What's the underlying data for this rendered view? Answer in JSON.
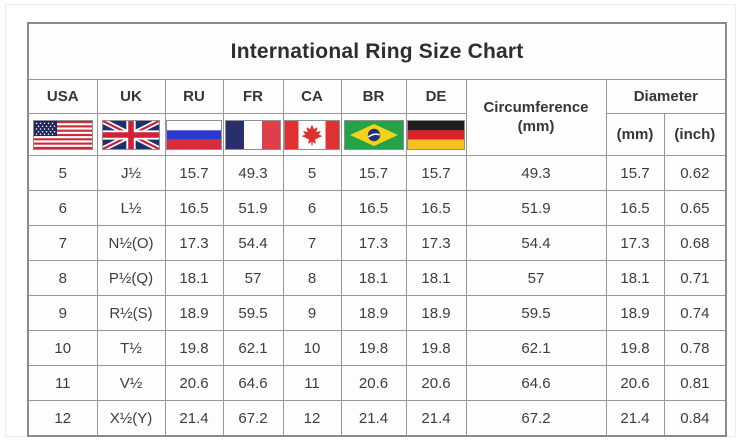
{
  "header": {
    "title": "International Ring Size Chart",
    "countries": [
      {
        "label": "USA",
        "flag": "usa-flag"
      },
      {
        "label": "UK",
        "flag": "uk-flag"
      },
      {
        "label": "RU",
        "flag": "ru-flag"
      },
      {
        "label": "FR",
        "flag": "fr-flag"
      },
      {
        "label": "CA",
        "flag": "ca-flag"
      },
      {
        "label": "BR",
        "flag": "br-flag"
      },
      {
        "label": "DE",
        "flag": "de-flag"
      }
    ],
    "circumference": {
      "label": "Circumference",
      "unit": "(mm)"
    },
    "diameter": {
      "label": "Diameter",
      "units": [
        "(mm)",
        "(inch)"
      ]
    }
  },
  "table": {
    "rows": [
      [
        "5",
        "J½",
        "15.7",
        "49.3",
        "5",
        "15.7",
        "15.7",
        "49.3",
        "15.7",
        "0.62"
      ],
      [
        "6",
        "L½",
        "16.5",
        "51.9",
        "6",
        "16.5",
        "16.5",
        "51.9",
        "16.5",
        "0.65"
      ],
      [
        "7",
        "N½(O)",
        "17.3",
        "54.4",
        "7",
        "17.3",
        "17.3",
        "54.4",
        "17.3",
        "0.68"
      ],
      [
        "8",
        "P½(Q)",
        "18.1",
        "57",
        "8",
        "18.1",
        "18.1",
        "57",
        "18.1",
        "0.71"
      ],
      [
        "9",
        "R½(S)",
        "18.9",
        "59.5",
        "9",
        "18.9",
        "18.9",
        "59.5",
        "18.9",
        "0.74"
      ],
      [
        "10",
        "T½",
        "19.8",
        "62.1",
        "10",
        "19.8",
        "19.8",
        "62.1",
        "19.8",
        "0.78"
      ],
      [
        "11",
        "V½",
        "20.6",
        "64.6",
        "11",
        "20.6",
        "20.6",
        "64.6",
        "20.6",
        "0.81"
      ],
      [
        "12",
        "X½(Y)",
        "21.4",
        "67.2",
        "12",
        "21.4",
        "21.4",
        "67.2",
        "21.4",
        "0.84"
      ]
    ]
  },
  "colors": {
    "table_border": "#8a8a8a",
    "cell_border": "#979797",
    "text": "#3d3d3d"
  },
  "chart_data": {
    "type": "table",
    "title": "International Ring Size Chart",
    "columns": [
      "USA",
      "UK",
      "RU",
      "FR",
      "CA",
      "BR",
      "DE",
      "Circumference (mm)",
      "Diameter (mm)",
      "Diameter (inch)"
    ],
    "rows": [
      [
        "5",
        "J½",
        15.7,
        49.3,
        "5",
        15.7,
        15.7,
        49.3,
        15.7,
        0.62
      ],
      [
        "6",
        "L½",
        16.5,
        51.9,
        "6",
        16.5,
        16.5,
        51.9,
        16.5,
        0.65
      ],
      [
        "7",
        "N½(O)",
        17.3,
        54.4,
        "7",
        17.3,
        17.3,
        54.4,
        17.3,
        0.68
      ],
      [
        "8",
        "P½(Q)",
        18.1,
        57,
        "8",
        18.1,
        18.1,
        57,
        18.1,
        0.71
      ],
      [
        "9",
        "R½(S)",
        18.9,
        59.5,
        "9",
        18.9,
        18.9,
        59.5,
        18.9,
        0.74
      ],
      [
        "10",
        "T½",
        19.8,
        62.1,
        "10",
        19.8,
        19.8,
        62.1,
        19.8,
        0.78
      ],
      [
        "11",
        "V½",
        20.6,
        64.6,
        "11",
        20.6,
        20.6,
        64.6,
        20.6,
        0.81
      ],
      [
        "12",
        "X½(Y)",
        21.4,
        67.2,
        "12",
        21.4,
        21.4,
        67.2,
        21.4,
        0.84
      ]
    ]
  }
}
